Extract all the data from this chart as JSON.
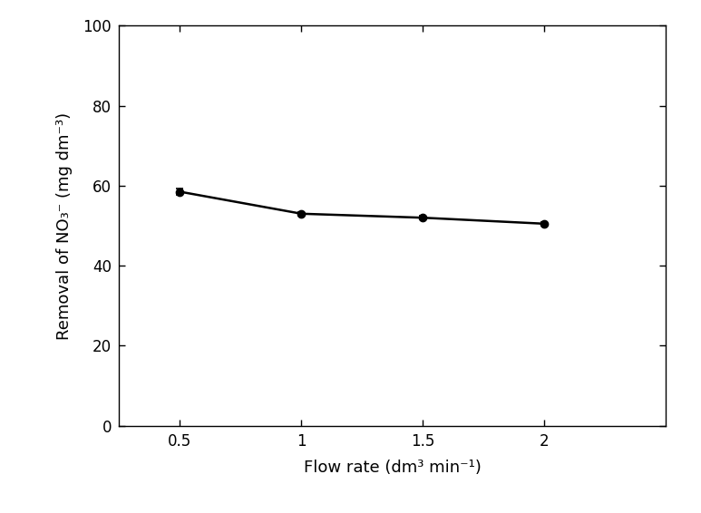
{
  "x": [
    0.5,
    1.0,
    1.5,
    2.0
  ],
  "y": [
    58.5,
    53.0,
    52.0,
    50.5
  ],
  "yerr": [
    0.8,
    0.4,
    0.4,
    0.4
  ],
  "xlabel": "Flow rate (dm³ min⁻¹)",
  "ylabel": "Removal of NO₃⁻ (mg dm⁻³)",
  "xlim": [
    0.25,
    2.5
  ],
  "ylim": [
    0,
    100
  ],
  "yticks": [
    0,
    20,
    40,
    60,
    80,
    100
  ],
  "xticks": [
    0.5,
    1.0,
    1.5,
    2.0
  ],
  "xtick_labels": [
    "0.5",
    "1",
    "1.5",
    "2"
  ],
  "line_color": "#000000",
  "marker": "o",
  "marker_size": 6,
  "marker_facecolor": "#000000",
  "linewidth": 1.8,
  "background_color": "#ffffff",
  "font_size_label": 13,
  "font_size_tick": 12,
  "font_family": "Arial"
}
